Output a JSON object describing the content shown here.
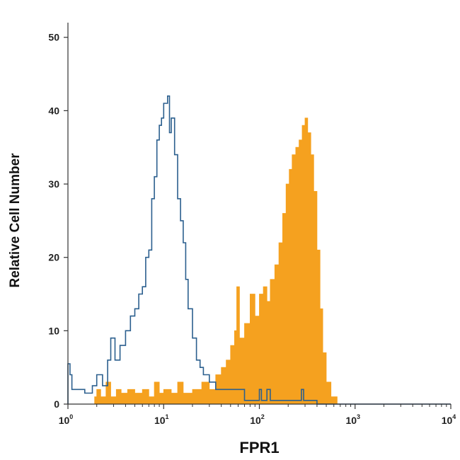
{
  "chart_data": {
    "type": "area",
    "xlabel": "FPR1",
    "ylabel": "Relative Cell Number",
    "x_scale": "log",
    "xlim": [
      1,
      10000
    ],
    "ylim": [
      0,
      52
    ],
    "x_ticks": [
      {
        "base": "10",
        "exp": "0",
        "value": 1
      },
      {
        "base": "10",
        "exp": "1",
        "value": 10
      },
      {
        "base": "10",
        "exp": "2",
        "value": 100
      },
      {
        "base": "10",
        "exp": "3",
        "value": 1000
      },
      {
        "base": "10",
        "exp": "4",
        "value": 10000
      }
    ],
    "y_ticks": [
      "0",
      "10",
      "20",
      "30",
      "40",
      "50"
    ],
    "grid": false,
    "series": [
      {
        "style": "filled",
        "color": "#F5A11F",
        "points": [
          [
            1,
            0
          ],
          [
            1.8,
            0
          ],
          [
            1.9,
            1
          ],
          [
            2.0,
            2
          ],
          [
            2.2,
            1
          ],
          [
            2.5,
            3
          ],
          [
            2.8,
            1
          ],
          [
            3.2,
            2
          ],
          [
            3.6,
            1.5
          ],
          [
            4.2,
            2
          ],
          [
            5.0,
            1.5
          ],
          [
            6.0,
            2
          ],
          [
            7.0,
            1
          ],
          [
            8.0,
            3
          ],
          [
            9.0,
            1.5
          ],
          [
            10,
            2
          ],
          [
            12,
            1.5
          ],
          [
            14,
            3
          ],
          [
            16,
            1.5
          ],
          [
            20,
            2
          ],
          [
            25,
            3
          ],
          [
            30,
            2
          ],
          [
            35,
            4
          ],
          [
            40,
            5
          ],
          [
            45,
            6
          ],
          [
            50,
            8
          ],
          [
            55,
            10
          ],
          [
            58,
            16
          ],
          [
            62,
            9
          ],
          [
            70,
            11
          ],
          [
            80,
            15
          ],
          [
            90,
            12
          ],
          [
            100,
            15
          ],
          [
            110,
            16
          ],
          [
            120,
            14
          ],
          [
            130,
            17
          ],
          [
            145,
            19
          ],
          [
            160,
            22
          ],
          [
            175,
            26
          ],
          [
            190,
            30
          ],
          [
            205,
            32
          ],
          [
            220,
            34
          ],
          [
            240,
            35
          ],
          [
            260,
            36
          ],
          [
            280,
            38
          ],
          [
            300,
            39
          ],
          [
            320,
            37
          ],
          [
            345,
            34
          ],
          [
            370,
            29
          ],
          [
            400,
            21
          ],
          [
            430,
            13
          ],
          [
            460,
            7
          ],
          [
            500,
            3
          ],
          [
            560,
            1
          ],
          [
            650,
            0
          ],
          [
            10000,
            0
          ]
        ]
      },
      {
        "style": "outline",
        "color": "#2B5F8E",
        "points": [
          [
            1.0,
            5.5
          ],
          [
            1.05,
            4
          ],
          [
            1.1,
            2
          ],
          [
            1.3,
            2
          ],
          [
            1.5,
            1.5
          ],
          [
            1.8,
            2.5
          ],
          [
            2.0,
            4
          ],
          [
            2.3,
            2.5
          ],
          [
            2.6,
            6
          ],
          [
            2.8,
            9
          ],
          [
            3.1,
            6
          ],
          [
            3.5,
            8
          ],
          [
            4.0,
            10
          ],
          [
            4.5,
            12
          ],
          [
            5.0,
            13
          ],
          [
            5.5,
            15
          ],
          [
            6.0,
            16
          ],
          [
            6.5,
            20
          ],
          [
            7.0,
            21
          ],
          [
            7.5,
            28
          ],
          [
            8.0,
            31
          ],
          [
            8.5,
            36
          ],
          [
            9.0,
            38
          ],
          [
            9.5,
            39
          ],
          [
            10,
            41
          ],
          [
            11,
            42
          ],
          [
            11.5,
            37
          ],
          [
            12,
            39
          ],
          [
            13,
            34
          ],
          [
            14,
            28
          ],
          [
            15,
            25
          ],
          [
            16,
            22
          ],
          [
            17,
            17
          ],
          [
            18,
            13
          ],
          [
            20,
            9
          ],
          [
            22,
            6
          ],
          [
            24,
            5
          ],
          [
            26,
            4
          ],
          [
            30,
            3
          ],
          [
            35,
            2
          ],
          [
            40,
            2
          ],
          [
            50,
            2
          ],
          [
            60,
            2
          ],
          [
            70,
            0.5
          ],
          [
            80,
            0.5
          ],
          [
            95,
            0.5
          ],
          [
            100,
            2
          ],
          [
            105,
            0.5
          ],
          [
            115,
            0.5
          ],
          [
            120,
            2
          ],
          [
            130,
            0.5
          ],
          [
            200,
            0.5
          ],
          [
            260,
            0.5
          ],
          [
            275,
            2
          ],
          [
            290,
            0.5
          ],
          [
            400,
            0
          ],
          [
            10000,
            0
          ]
        ]
      }
    ]
  }
}
